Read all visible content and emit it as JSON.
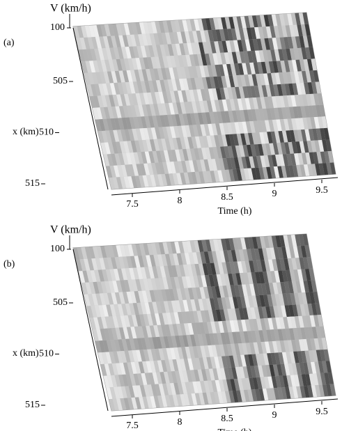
{
  "chart_data": [
    {
      "type": "surface",
      "panel_label": "(a)",
      "zlabel": "V (km/h)",
      "zticks": [
        100
      ],
      "ylabel": "x (km)",
      "yticks": [
        505,
        510,
        515
      ],
      "xlabel": "Time (h)",
      "xticks": [
        7.5,
        8,
        8.5,
        9,
        9.5
      ]
    },
    {
      "type": "surface",
      "panel_label": "(b)",
      "zlabel": "V (km/h)",
      "zticks": [
        100
      ],
      "ylabel": "x (km)",
      "yticks": [
        505,
        510,
        515
      ],
      "xlabel": "Time (h)",
      "xticks": [
        7.5,
        8,
        8.5,
        9,
        9.5
      ]
    }
  ]
}
